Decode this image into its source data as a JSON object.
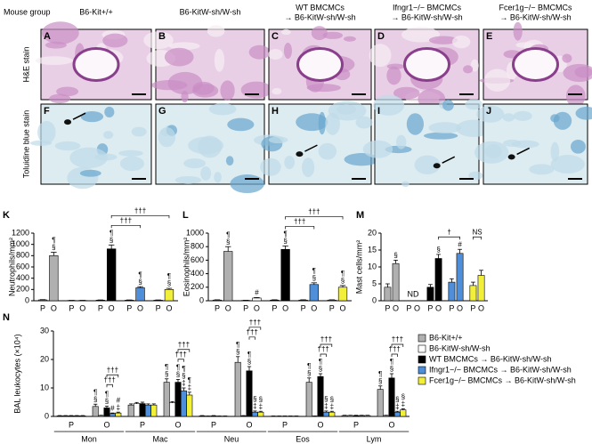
{
  "figure": {
    "group_label": "Mouse group",
    "groups": [
      [
        "B6-Kit+/+"
      ],
      [
        "B6-KitW-sh/W-sh"
      ],
      [
        "WT BMCMCs",
        "→ B6-KitW-sh/W-sh"
      ],
      [
        "Ifngr1−/− BMCMCs",
        "→ B6-KitW-sh/W-sh"
      ],
      [
        "Fcer1g−/− BMCMCs",
        "→ B6-KitW-sh/W-sh"
      ]
    ],
    "row_labels": [
      "H&E stain",
      "Toluidine blue stain"
    ],
    "panels": [
      "A",
      "B",
      "C",
      "D",
      "E",
      "F",
      "G",
      "H",
      "I",
      "J"
    ]
  },
  "chart_data": [
    {
      "type": "bar",
      "panel": "K",
      "ylabel": "Neutrophils/mm²",
      "ylim": [
        0,
        1200
      ],
      "yticks": [
        0,
        200,
        400,
        600,
        800,
        1000,
        1200
      ],
      "categories": [
        "P",
        "O"
      ],
      "series": [
        {
          "color": "#b0b0b0",
          "values": [
            15,
            800
          ],
          "errors": [
            5,
            60
          ],
          "symbols": [
            null,
            [
              "¶",
              "§"
            ]
          ]
        },
        {
          "color": "#ffffff",
          "values": [
            5,
            5
          ],
          "errors": [
            2,
            2
          ]
        },
        {
          "color": "#000000",
          "values": [
            10,
            920
          ],
          "errors": [
            4,
            70
          ],
          "symbols": [
            null,
            [
              "¶",
              "§"
            ]
          ]
        },
        {
          "color": "#4f8fd9",
          "values": [
            10,
            230
          ],
          "errors": [
            4,
            20
          ],
          "symbols": [
            null,
            [
              "¶",
              "§"
            ]
          ]
        },
        {
          "color": "#f2ef3a",
          "values": [
            10,
            200
          ],
          "errors": [
            4,
            20
          ],
          "symbols": [
            null,
            [
              "¶",
              "§"
            ]
          ]
        }
      ],
      "brackets": [
        {
          "label": "†††",
          "from": [
            2,
            1
          ],
          "to": [
            3,
            1
          ]
        },
        {
          "label": "†††",
          "from": [
            2,
            1
          ],
          "to": [
            4,
            1
          ]
        }
      ]
    },
    {
      "type": "bar",
      "panel": "L",
      "ylabel": "Eosinophils/mm²",
      "ylim": [
        0,
        1000
      ],
      "yticks": [
        0,
        200,
        400,
        600,
        800,
        1000
      ],
      "categories": [
        "P",
        "O"
      ],
      "series": [
        {
          "color": "#b0b0b0",
          "values": [
            10,
            730
          ],
          "errors": [
            4,
            70
          ],
          "symbols": [
            null,
            [
              "¶",
              "§"
            ]
          ]
        },
        {
          "color": "#ffffff",
          "values": [
            5,
            40
          ],
          "errors": [
            2,
            8
          ],
          "symbols": [
            null,
            [
              "#"
            ]
          ]
        },
        {
          "color": "#000000",
          "values": [
            10,
            760
          ],
          "errors": [
            4,
            50
          ],
          "symbols": [
            null,
            [
              "¶",
              "§"
            ]
          ]
        },
        {
          "color": "#4f8fd9",
          "values": [
            10,
            240
          ],
          "errors": [
            4,
            25
          ],
          "symbols": [
            null,
            [
              "¶",
              "§"
            ]
          ]
        },
        {
          "color": "#f2ef3a",
          "values": [
            10,
            200
          ],
          "errors": [
            4,
            25
          ],
          "symbols": [
            null,
            [
              "¶",
              "§"
            ]
          ]
        }
      ],
      "brackets": [
        {
          "label": "†††",
          "from": [
            2,
            1
          ],
          "to": [
            3,
            1
          ]
        },
        {
          "label": "†††",
          "from": [
            2,
            1
          ],
          "to": [
            4,
            1
          ]
        }
      ]
    },
    {
      "type": "bar",
      "panel": "M",
      "ylabel": "Mast cells/mm²",
      "ylim": [
        0,
        20
      ],
      "yticks": [
        0,
        5,
        10,
        15,
        20
      ],
      "categories": [
        "P",
        "O"
      ],
      "series": [
        {
          "color": "#b0b0b0",
          "values": [
            4,
            11
          ],
          "errors": [
            1,
            1
          ],
          "symbols": [
            null,
            [
              "§"
            ]
          ]
        },
        {
          "color": "#ffffff",
          "values": [
            null,
            null
          ],
          "note": "ND"
        },
        {
          "color": "#000000",
          "values": [
            4,
            12.5
          ],
          "errors": [
            0.8,
            1.2
          ],
          "symbols": [
            null,
            [
              "§"
            ]
          ]
        },
        {
          "color": "#4f8fd9",
          "values": [
            5.5,
            14
          ],
          "errors": [
            1,
            1.2
          ],
          "symbols": [
            null,
            [
              "#"
            ]
          ]
        },
        {
          "color": "#f2ef3a",
          "values": [
            4.5,
            7.5
          ],
          "errors": [
            1,
            1.5
          ]
        }
      ],
      "brackets": [
        {
          "label": "†",
          "from": [
            2,
            1
          ],
          "to": [
            3,
            1
          ]
        },
        {
          "label": "NS",
          "from": [
            4,
            0
          ],
          "to": [
            4,
            1
          ]
        }
      ]
    },
    {
      "type": "bar",
      "panel": "N",
      "ylabel": "BAL leukocytes (×10⁴)",
      "ylim": [
        0,
        30
      ],
      "yticks": [
        0,
        10,
        20,
        30
      ],
      "categories": [
        "P",
        "O",
        "P",
        "O",
        "P",
        "O",
        "P",
        "O",
        "P",
        "O"
      ],
      "groups": [
        "Mon",
        "Mac",
        "Neu",
        "Eos",
        "Lym"
      ],
      "series": [
        {
          "name": "B6-Kit+/+",
          "color": "#b0b0b0",
          "values": [
            0.2,
            3.5,
            4,
            12,
            0.2,
            19,
            0.1,
            12,
            0.3,
            9.5
          ],
          "errors": [
            0.1,
            0.8,
            0.4,
            1.2,
            0.1,
            2,
            0.05,
            1.5,
            0.1,
            1.2
          ],
          "symbols": [
            null,
            [
              "¶",
              "§"
            ],
            null,
            [
              "¶",
              "§"
            ],
            null,
            [
              "¶",
              "§"
            ],
            null,
            [
              "¶",
              "§"
            ],
            null,
            [
              "¶",
              "§"
            ]
          ]
        },
        {
          "name": "B6-KitW-sh/W-sh",
          "color": "#ffffff",
          "values": [
            0.2,
            0.3,
            4.5,
            4.8,
            0.1,
            0.2,
            0.1,
            0.1,
            0.3,
            0.3
          ],
          "errors": [
            0.1,
            0.1,
            0.4,
            0.4,
            0.05,
            0.1,
            0.05,
            0.05,
            0.1,
            0.1
          ]
        },
        {
          "name": "WT BMCMCs → B6-KitW-sh/W-sh",
          "color": "#000000",
          "values": [
            0.2,
            3,
            4.5,
            12,
            0.2,
            16,
            0.1,
            14,
            0.3,
            13.5
          ],
          "errors": [
            0.1,
            0.6,
            0.5,
            1,
            0.1,
            1.5,
            0.05,
            1,
            0.1,
            1.5
          ],
          "symbols": [
            null,
            [
              "¶",
              "§"
            ],
            null,
            [
              "¶",
              "§"
            ],
            null,
            [
              "¶",
              "§"
            ],
            null,
            [
              "¶",
              "§"
            ],
            null,
            [
              "¶",
              "§"
            ]
          ]
        },
        {
          "name": "Ifngr1−/− BMCMCs → B6-KitW-sh/W-sh",
          "color": "#4f8fd9",
          "values": [
            0.2,
            1,
            4,
            9,
            0.1,
            1.5,
            0.1,
            1.5,
            0.3,
            1.5
          ],
          "errors": [
            0.1,
            0.2,
            0.4,
            1,
            0.05,
            0.4,
            0.05,
            0.4,
            0.1,
            0.3
          ],
          "symbols": [
            null,
            [
              "#"
            ],
            null,
            [
              "¶",
              "§",
              "‡"
            ],
            null,
            [
              "§",
              "‡"
            ],
            null,
            [
              "§",
              "‡"
            ],
            null,
            [
              "§",
              "‡"
            ]
          ]
        },
        {
          "name": "Fcer1g−/− BMCMCs → B6-KitW-sh/W-sh",
          "color": "#f2ef3a",
          "values": [
            0.2,
            1.2,
            4,
            7.5,
            0.1,
            1.5,
            0.1,
            1.5,
            0.3,
            2.3
          ],
          "errors": [
            0.1,
            0.3,
            0.4,
            1,
            0.05,
            0.3,
            0.05,
            0.3,
            0.1,
            0.4
          ],
          "symbols": [
            null,
            [
              "#",
              "‡"
            ],
            null,
            [
              "¶",
              "‡"
            ],
            null,
            [
              "§",
              "‡"
            ],
            null,
            [
              "§",
              "‡"
            ],
            null,
            [
              "§",
              "‡"
            ]
          ]
        }
      ],
      "brackets": [
        {
          "label": "†††",
          "from": [
            2,
            1
          ],
          "to": [
            3,
            1
          ]
        },
        {
          "label": "†††",
          "from": [
            2,
            1
          ],
          "to": [
            4,
            1
          ]
        },
        {
          "label": "†††",
          "from": [
            2,
            3
          ],
          "to": [
            3,
            3
          ]
        },
        {
          "label": "†††",
          "from": [
            2,
            3
          ],
          "to": [
            4,
            3
          ]
        },
        {
          "label": "†††",
          "from": [
            2,
            5
          ],
          "to": [
            3,
            5
          ]
        },
        {
          "label": "†††",
          "from": [
            2,
            5
          ],
          "to": [
            4,
            5
          ]
        },
        {
          "label": "†††",
          "from": [
            2,
            7
          ],
          "to": [
            3,
            7
          ]
        },
        {
          "label": "†††",
          "from": [
            2,
            7
          ],
          "to": [
            4,
            7
          ]
        },
        {
          "label": "†††",
          "from": [
            2,
            9
          ],
          "to": [
            3,
            9
          ]
        },
        {
          "label": "†††",
          "from": [
            2,
            9
          ],
          "to": [
            4,
            9
          ]
        }
      ]
    }
  ]
}
